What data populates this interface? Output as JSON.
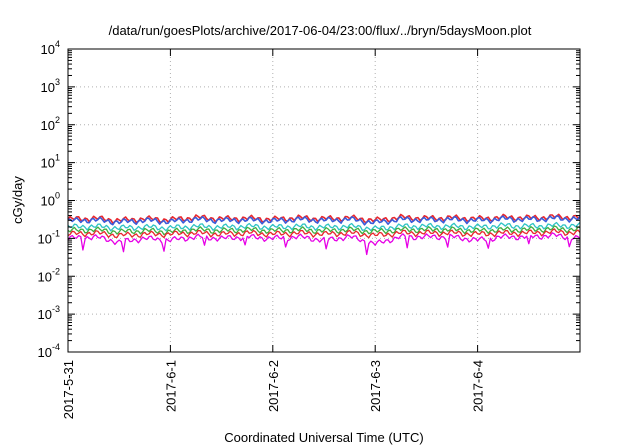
{
  "chart_data": {
    "type": "line",
    "title": "/data/run/goesPlots/archive/2017-06-04/23:00/flux/../bryn/5daysMoon.plot",
    "xlabel": "Coordinated Universal Time (UTC)",
    "ylabel": "cGy/day",
    "yscale": "log",
    "ylim": [
      0.0001,
      10000
    ],
    "xlim": [
      "2017-05-31",
      "2017-06-05"
    ],
    "grid": true,
    "y_ticks": [
      {
        "base": "10",
        "exp": "-4"
      },
      {
        "base": "10",
        "exp": "-3"
      },
      {
        "base": "10",
        "exp": "-2"
      },
      {
        "base": "10",
        "exp": "-1"
      },
      {
        "base": "10",
        "exp": "0"
      },
      {
        "base": "10",
        "exp": "1"
      },
      {
        "base": "10",
        "exp": "2"
      },
      {
        "base": "10",
        "exp": "3"
      },
      {
        "base": "10",
        "exp": "4"
      }
    ],
    "x_ticks": [
      "2017-5-31",
      "2017-6-1",
      "2017-6-2",
      "2017-6-3",
      "2017-6-4"
    ],
    "x": [
      "2017-05-31 00:00",
      "2017-05-31 06:00",
      "2017-05-31 12:00",
      "2017-05-31 18:00",
      "2017-06-01 00:00",
      "2017-06-01 06:00",
      "2017-06-01 12:00",
      "2017-06-01 18:00",
      "2017-06-02 00:00",
      "2017-06-02 06:00",
      "2017-06-02 12:00",
      "2017-06-02 18:00",
      "2017-06-03 00:00",
      "2017-06-03 06:00",
      "2017-06-03 12:00",
      "2017-06-03 18:00",
      "2017-06-04 00:00",
      "2017-06-04 06:00",
      "2017-06-04 12:00",
      "2017-06-04 18:00",
      "2017-06-05 00:00"
    ],
    "series": [
      {
        "color": "#e8262c",
        "values": [
          0.32,
          0.34,
          0.3,
          0.33,
          0.31,
          0.36,
          0.33,
          0.34,
          0.32,
          0.35,
          0.33,
          0.35,
          0.3,
          0.36,
          0.34,
          0.35,
          0.33,
          0.36,
          0.35,
          0.37,
          0.36
        ]
      },
      {
        "color": "#3b5bd9",
        "values": [
          0.29,
          0.31,
          0.27,
          0.3,
          0.28,
          0.32,
          0.3,
          0.31,
          0.29,
          0.32,
          0.3,
          0.32,
          0.26,
          0.32,
          0.31,
          0.32,
          0.3,
          0.33,
          0.32,
          0.34,
          0.33
        ]
      },
      {
        "color": "#2ec4c4",
        "values": [
          0.2,
          0.21,
          0.19,
          0.2,
          0.19,
          0.21,
          0.2,
          0.21,
          0.2,
          0.21,
          0.2,
          0.21,
          0.18,
          0.21,
          0.21,
          0.21,
          0.2,
          0.22,
          0.21,
          0.22,
          0.22
        ]
      },
      {
        "color": "#3fae3f",
        "values": [
          0.16,
          0.17,
          0.15,
          0.16,
          0.15,
          0.17,
          0.16,
          0.17,
          0.16,
          0.17,
          0.16,
          0.17,
          0.15,
          0.17,
          0.17,
          0.17,
          0.16,
          0.17,
          0.17,
          0.18,
          0.17
        ]
      },
      {
        "color": "#e8262c",
        "values": [
          0.13,
          0.14,
          0.12,
          0.13,
          0.13,
          0.14,
          0.13,
          0.14,
          0.13,
          0.14,
          0.13,
          0.14,
          0.12,
          0.14,
          0.14,
          0.14,
          0.13,
          0.14,
          0.14,
          0.15,
          0.14
        ]
      },
      {
        "color": "#e600e6",
        "values": [
          0.1,
          0.11,
          0.08,
          0.1,
          0.09,
          0.11,
          0.1,
          0.11,
          0.1,
          0.11,
          0.09,
          0.11,
          0.07,
          0.11,
          0.11,
          0.11,
          0.09,
          0.11,
          0.11,
          0.12,
          0.1
        ]
      }
    ]
  }
}
